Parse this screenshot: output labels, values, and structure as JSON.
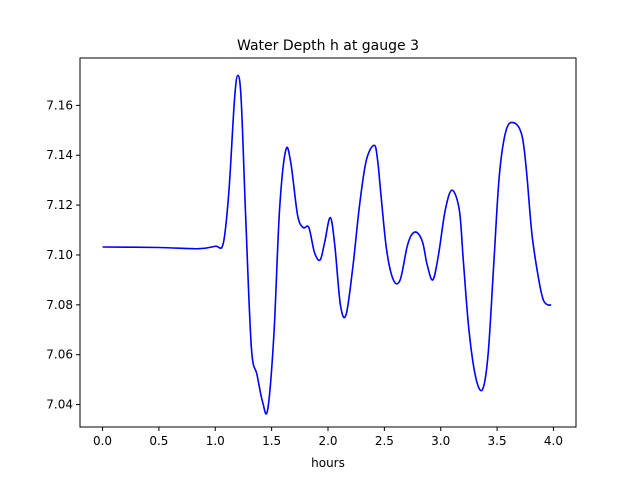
{
  "chart_data": {
    "type": "line",
    "title": "Water Depth h at gauge 3",
    "xlabel": "hours",
    "ylabel": "",
    "xlim": [
      -0.2,
      4.2
    ],
    "ylim": [
      7.031,
      7.179
    ],
    "xticks": [
      0.0,
      0.5,
      1.0,
      1.5,
      2.0,
      2.5,
      3.0,
      3.5,
      4.0
    ],
    "xtick_labels": [
      "0.0",
      "0.5",
      "1.0",
      "1.5",
      "2.0",
      "2.5",
      "3.0",
      "3.5",
      "4.0"
    ],
    "yticks": [
      7.04,
      7.06,
      7.08,
      7.1,
      7.12,
      7.14,
      7.16
    ],
    "ytick_labels": [
      "7.04",
      "7.06",
      "7.08",
      "7.10",
      "7.12",
      "7.14",
      "7.16"
    ],
    "grid": false,
    "legend": "none",
    "line_color": "#0000ff",
    "series": [
      {
        "x": [
          0.0,
          0.5,
          0.85,
          1.0,
          1.07,
          1.12,
          1.17,
          1.2,
          1.23,
          1.27,
          1.32,
          1.37,
          1.42,
          1.465,
          1.52,
          1.57,
          1.625,
          1.67,
          1.73,
          1.78,
          1.83,
          1.88,
          1.93,
          1.97,
          2.02,
          2.06,
          2.11,
          2.16,
          2.22,
          2.28,
          2.34,
          2.41,
          2.44,
          2.47,
          2.52,
          2.58,
          2.64,
          2.7,
          2.74,
          2.79,
          2.84,
          2.88,
          2.93,
          2.98,
          3.04,
          3.1,
          3.165,
          3.2,
          3.25,
          3.31,
          3.37,
          3.42,
          3.47,
          3.52,
          3.58,
          3.65,
          3.72,
          3.76,
          3.81,
          3.87,
          3.91,
          3.95,
          3.98
        ],
        "y": [
          7.1032,
          7.103,
          7.1025,
          7.1035,
          7.1045,
          7.125,
          7.162,
          7.172,
          7.162,
          7.115,
          7.063,
          7.052,
          7.041,
          7.038,
          7.068,
          7.118,
          7.142,
          7.137,
          7.116,
          7.111,
          7.111,
          7.101,
          7.098,
          7.105,
          7.115,
          7.104,
          7.08,
          7.076,
          7.095,
          7.12,
          7.138,
          7.144,
          7.138,
          7.124,
          7.102,
          7.09,
          7.09,
          7.103,
          7.108,
          7.109,
          7.105,
          7.096,
          7.09,
          7.1,
          7.118,
          7.126,
          7.118,
          7.098,
          7.07,
          7.051,
          7.046,
          7.06,
          7.096,
          7.132,
          7.15,
          7.153,
          7.148,
          7.134,
          7.108,
          7.09,
          7.082,
          7.08,
          7.08
        ]
      }
    ]
  }
}
